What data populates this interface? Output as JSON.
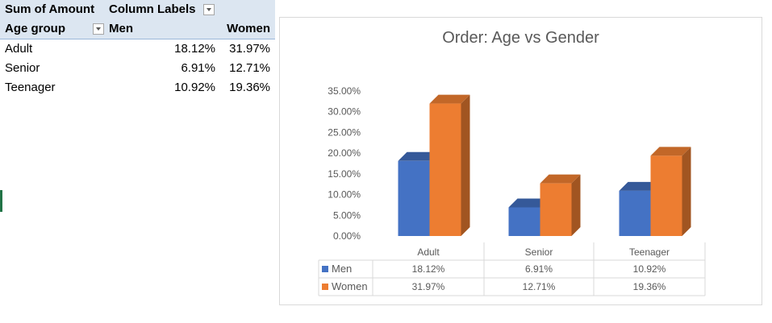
{
  "pivot": {
    "sum_label": "Sum of Amount",
    "column_labels": "Column Labels",
    "row_field": "Age group",
    "col_men": "Men",
    "col_women": "Women",
    "rows": [
      {
        "label": "Adult",
        "men": "18.12%",
        "women": "31.97%"
      },
      {
        "label": "Senior",
        "men": "6.91%",
        "women": "12.71%"
      },
      {
        "label": "Teenager",
        "men": "10.92%",
        "women": "19.36%"
      }
    ]
  },
  "chart_data": {
    "type": "bar",
    "title": "Order: Age vs Gender",
    "categories": [
      "Adult",
      "Senior",
      "Teenager"
    ],
    "series": [
      {
        "name": "Men",
        "values": [
          18.12,
          6.91,
          10.92
        ],
        "labels": [
          "18.12%",
          "6.91%",
          "10.92%"
        ],
        "color": "#4472c4"
      },
      {
        "name": "Women",
        "values": [
          31.97,
          12.71,
          19.36
        ],
        "labels": [
          "31.97%",
          "12.71%",
          "19.36%"
        ],
        "color": "#ed7d31"
      }
    ],
    "ylim": [
      0,
      35
    ],
    "yticks": [
      "0.00%",
      "5.00%",
      "10.00%",
      "15.00%",
      "20.00%",
      "25.00%",
      "30.00%",
      "35.00%"
    ],
    "data_table": true,
    "three_d": true
  }
}
